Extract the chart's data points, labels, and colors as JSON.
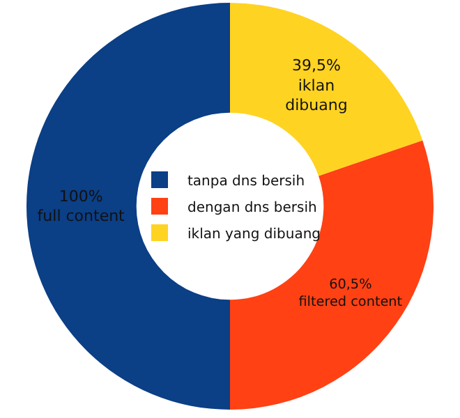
{
  "chart_data": {
    "type": "donut",
    "categories": [
      "tanpa dns bersih",
      "dengan dns bersih",
      "iklan yang dibuang"
    ],
    "values": [
      100,
      60.5,
      39.5
    ],
    "colors": [
      "#0b3f86",
      "#ff4114",
      "#ffd321"
    ],
    "value_labels": [
      "100%\nfull content",
      "60,5%\nfiltered content",
      "39,5%\niklan\ndibuang"
    ],
    "legend": "center"
  }
}
